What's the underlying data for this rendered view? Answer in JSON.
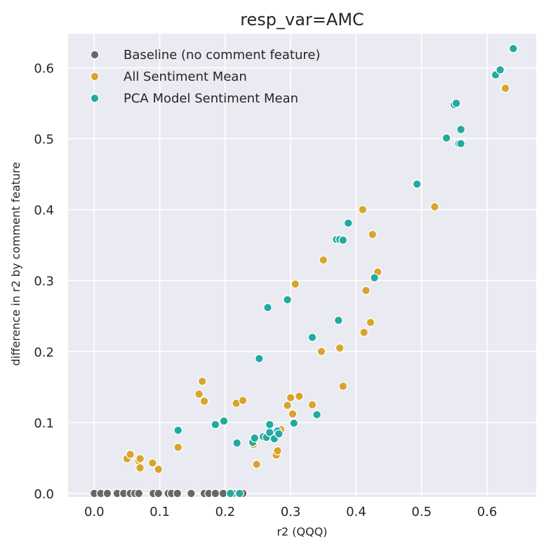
{
  "colors": {
    "background": "#eaeaf2",
    "grid": "#ffffff",
    "baseline": "#676767",
    "all_sentiment": "#d8a42c",
    "pca_sentiment": "#22aaa0"
  },
  "chart_data": {
    "type": "scatter",
    "title": "resp_var=AMC",
    "xlabel": "r2 (QQQ)",
    "ylabel": "difference in r2 by comment feature",
    "xlim": [
      -0.04,
      0.675
    ],
    "ylim": [
      -0.005,
      0.648
    ],
    "xticks": [
      0.0,
      0.1,
      0.2,
      0.3,
      0.4,
      0.5,
      0.6
    ],
    "xtick_labels": [
      "0.0",
      "0.1",
      "0.2",
      "0.3",
      "0.4",
      "0.5",
      "0.6"
    ],
    "yticks": [
      0.0,
      0.1,
      0.2,
      0.3,
      0.4,
      0.5,
      0.6
    ],
    "ytick_labels": [
      "0.0",
      "0.1",
      "0.2",
      "0.3",
      "0.4",
      "0.5",
      "0.6"
    ],
    "grid": true,
    "legend_position": "top-left",
    "series": [
      {
        "name": "Baseline (no comment feature)",
        "color": "#676767",
        "points": [
          [
            0.0,
            0.0
          ],
          [
            0.01,
            0.0
          ],
          [
            0.02,
            0.0
          ],
          [
            0.035,
            0.0
          ],
          [
            0.045,
            0.0
          ],
          [
            0.055,
            0.0
          ],
          [
            0.062,
            0.0
          ],
          [
            0.068,
            0.0
          ],
          [
            0.09,
            0.0
          ],
          [
            0.098,
            0.0
          ],
          [
            0.113,
            0.0
          ],
          [
            0.118,
            0.0
          ],
          [
            0.127,
            0.0
          ],
          [
            0.148,
            0.0
          ],
          [
            0.168,
            0.0
          ],
          [
            0.175,
            0.0
          ],
          [
            0.185,
            0.0
          ],
          [
            0.197,
            0.0
          ],
          [
            0.212,
            0.0
          ],
          [
            0.227,
            0.0
          ]
        ]
      },
      {
        "name": "All Sentiment Mean",
        "color": "#d8a42c",
        "points": [
          [
            0.05,
            0.049
          ],
          [
            0.055,
            0.055
          ],
          [
            0.068,
            0.046
          ],
          [
            0.07,
            0.049
          ],
          [
            0.07,
            0.036
          ],
          [
            0.089,
            0.043
          ],
          [
            0.098,
            0.034
          ],
          [
            0.128,
            0.065
          ],
          [
            0.16,
            0.14
          ],
          [
            0.165,
            0.158
          ],
          [
            0.168,
            0.13
          ],
          [
            0.217,
            0.127
          ],
          [
            0.227,
            0.131
          ],
          [
            0.243,
            0.069
          ],
          [
            0.248,
            0.041
          ],
          [
            0.278,
            0.054
          ],
          [
            0.28,
            0.06
          ],
          [
            0.282,
            0.088
          ],
          [
            0.285,
            0.09
          ],
          [
            0.295,
            0.124
          ],
          [
            0.3,
            0.135
          ],
          [
            0.303,
            0.112
          ],
          [
            0.307,
            0.295
          ],
          [
            0.313,
            0.137
          ],
          [
            0.333,
            0.125
          ],
          [
            0.347,
            0.2
          ],
          [
            0.35,
            0.329
          ],
          [
            0.375,
            0.205
          ],
          [
            0.38,
            0.151
          ],
          [
            0.41,
            0.4
          ],
          [
            0.412,
            0.227
          ],
          [
            0.415,
            0.286
          ],
          [
            0.422,
            0.241
          ],
          [
            0.425,
            0.365
          ],
          [
            0.433,
            0.312
          ],
          [
            0.52,
            0.404
          ],
          [
            0.628,
            0.571
          ]
        ]
      },
      {
        "name": "PCA Model Sentiment Mean",
        "color": "#22aaa0",
        "points": [
          [
            0.128,
            0.089
          ],
          [
            0.185,
            0.097
          ],
          [
            0.198,
            0.102
          ],
          [
            0.208,
            0.0
          ],
          [
            0.218,
            0.071
          ],
          [
            0.222,
            0.0
          ],
          [
            0.242,
            0.072
          ],
          [
            0.245,
            0.078
          ],
          [
            0.252,
            0.19
          ],
          [
            0.258,
            0.08
          ],
          [
            0.263,
            0.079
          ],
          [
            0.265,
            0.262
          ],
          [
            0.268,
            0.086
          ],
          [
            0.268,
            0.097
          ],
          [
            0.275,
            0.077
          ],
          [
            0.28,
            0.088
          ],
          [
            0.282,
            0.084
          ],
          [
            0.295,
            0.273
          ],
          [
            0.305,
            0.099
          ],
          [
            0.333,
            0.22
          ],
          [
            0.34,
            0.111
          ],
          [
            0.37,
            0.358
          ],
          [
            0.373,
            0.244
          ],
          [
            0.375,
            0.358
          ],
          [
            0.38,
            0.357
          ],
          [
            0.388,
            0.381
          ],
          [
            0.428,
            0.304
          ],
          [
            0.493,
            0.436
          ],
          [
            0.538,
            0.501
          ],
          [
            0.55,
            0.548
          ],
          [
            0.553,
            0.55
          ],
          [
            0.557,
            0.493
          ],
          [
            0.56,
            0.493
          ],
          [
            0.56,
            0.513
          ],
          [
            0.613,
            0.59
          ],
          [
            0.62,
            0.597
          ],
          [
            0.64,
            0.627
          ]
        ]
      }
    ]
  }
}
